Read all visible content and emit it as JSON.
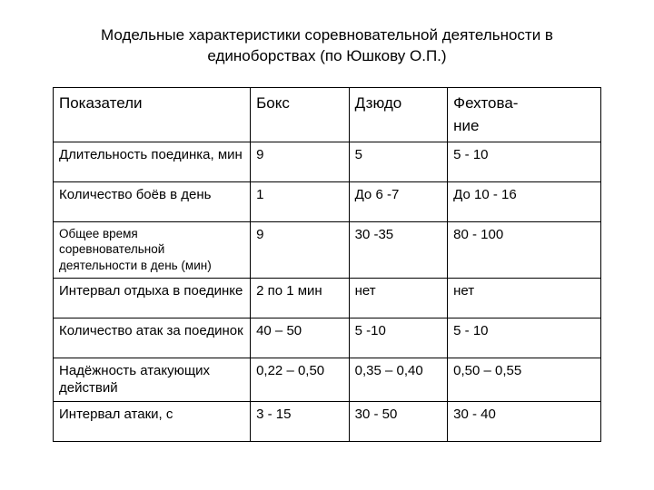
{
  "title": "Модельные характеристики соревновательной деятельности в единоборствах (по Юшкову О.П.)",
  "table": {
    "columns": [
      "Показатели",
      "Бокс",
      "Дзюдо",
      "Фехтова-\nние"
    ],
    "rows": [
      {
        "label": "Длительность поединка, мин",
        "cells": [
          "9",
          "5",
          "5 - 10"
        ],
        "small": false
      },
      {
        "label": "Количество боёв в день",
        "cells": [
          "1",
          "До 6 -7",
          "До 10 - 16"
        ],
        "small": false
      },
      {
        "label": "Общее время соревновательной деятельности в день (мин)",
        "cells": [
          "9",
          "30 -35",
          "80 - 100"
        ],
        "small": true
      },
      {
        "label": "Интервал отдыха в поединке",
        "cells": [
          "2 по 1 мин",
          "нет",
          "нет"
        ],
        "small": false
      },
      {
        "label": "Количество атак за поединок",
        "cells": [
          "40 – 50",
          "5 -10",
          "5 - 10"
        ],
        "small": false
      },
      {
        "label": "Надёжность атакующих действий",
        "cells": [
          "0,22 – 0,50",
          "0,35 – 0,40",
          "0,50 – 0,55"
        ],
        "small": false
      },
      {
        "label": "Интервал атаки, с",
        "cells": [
          "3 - 15",
          "30 - 50",
          "30 - 40"
        ],
        "small": false
      }
    ]
  }
}
